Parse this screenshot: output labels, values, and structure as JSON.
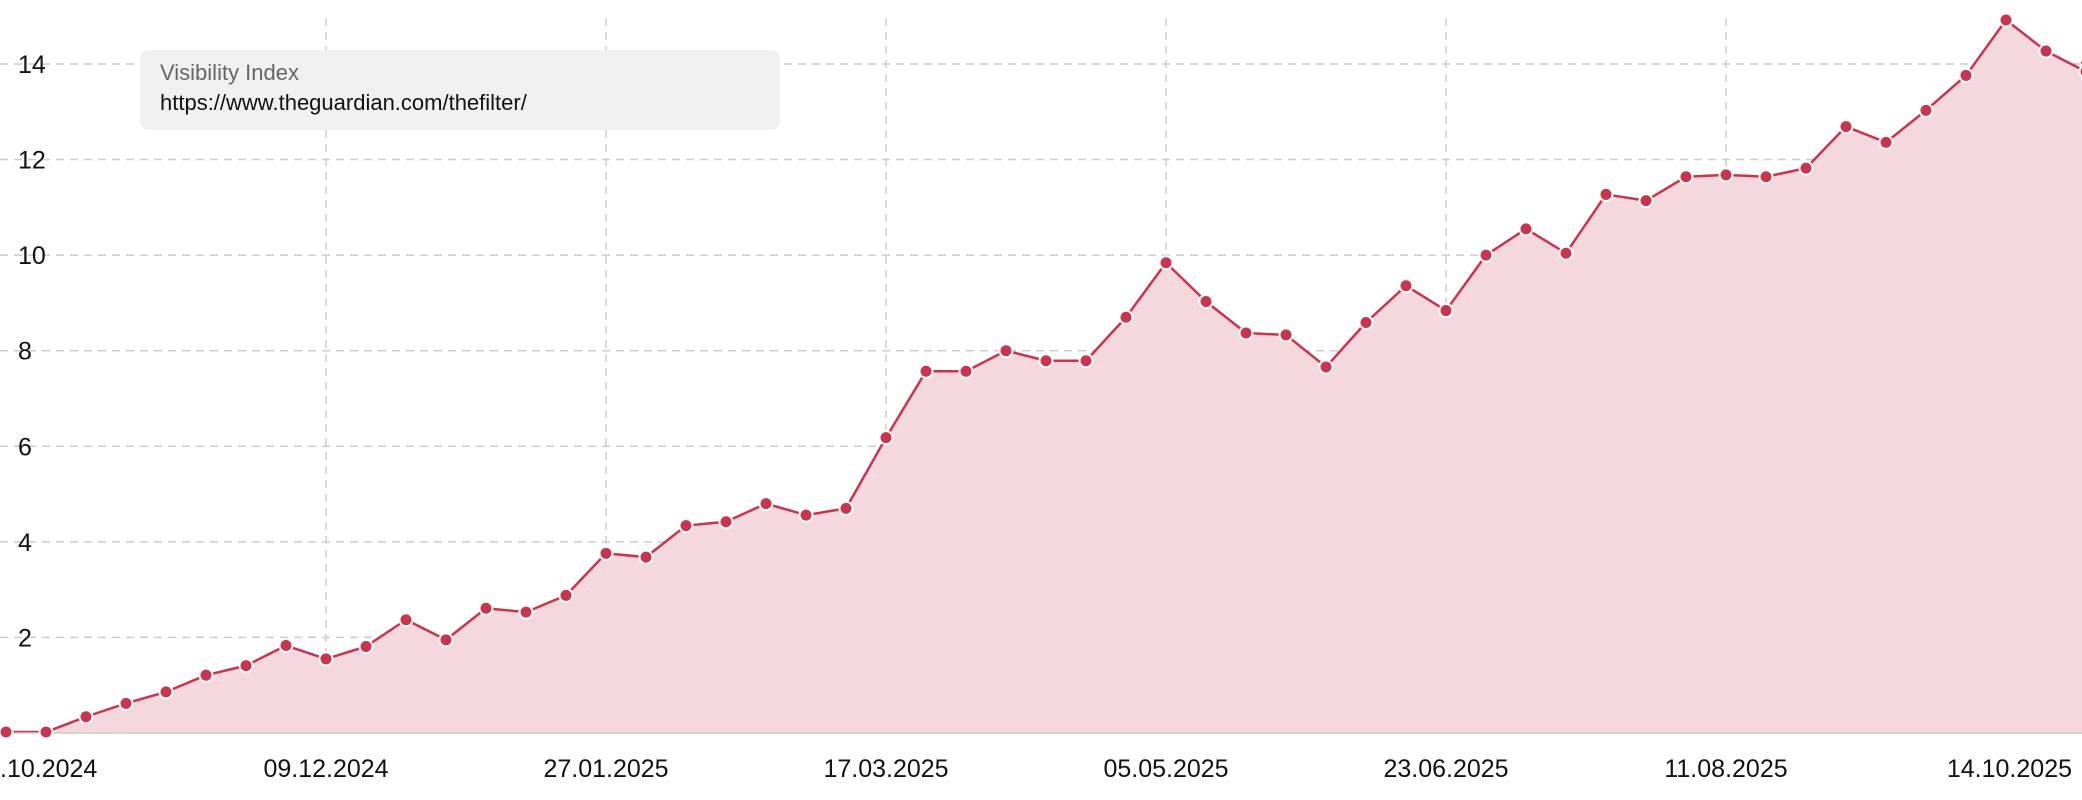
{
  "chart_data": {
    "type": "area",
    "legend": {
      "title": "Visibility Index",
      "series_label": "https://www.theguardian.com/thefilter/"
    },
    "x": [
      "2024-10-14",
      "2024-10-21",
      "2024-10-28",
      "2024-11-04",
      "2024-11-11",
      "2024-11-18",
      "2024-11-25",
      "2024-12-02",
      "2024-12-09",
      "2024-12-16",
      "2024-12-23",
      "2024-12-30",
      "2025-01-06",
      "2025-01-13",
      "2025-01-20",
      "2025-01-27",
      "2025-02-03",
      "2025-02-10",
      "2025-02-17",
      "2025-02-24",
      "2025-03-03",
      "2025-03-10",
      "2025-03-17",
      "2025-03-24",
      "2025-03-31",
      "2025-04-07",
      "2025-04-14",
      "2025-04-21",
      "2025-04-28",
      "2025-05-05",
      "2025-05-12",
      "2025-05-19",
      "2025-05-26",
      "2025-06-02",
      "2025-06-09",
      "2025-06-16",
      "2025-06-23",
      "2025-06-30",
      "2025-07-07",
      "2025-07-14",
      "2025-07-21",
      "2025-07-28",
      "2025-08-04",
      "2025-08-11",
      "2025-08-18",
      "2025-08-25",
      "2025-09-01",
      "2025-09-08",
      "2025-09-15",
      "2025-09-22",
      "2025-09-29",
      "2025-10-06",
      "2025-10-13"
    ],
    "series": [
      {
        "values": [
          0.02,
          0.02,
          0.34,
          0.62,
          0.86,
          1.21,
          1.41,
          1.83,
          1.55,
          1.81,
          2.37,
          1.95,
          2.61,
          2.53,
          2.88,
          3.76,
          3.68,
          4.34,
          4.42,
          4.8,
          4.56,
          4.7,
          6.18,
          7.57,
          7.57,
          8.0,
          7.79,
          7.79,
          8.7,
          9.84,
          9.03,
          8.37,
          8.33,
          7.66,
          8.59,
          9.36,
          8.84,
          10.0,
          10.55,
          10.04,
          11.27,
          11.14,
          11.64,
          11.68,
          11.64,
          11.82,
          12.69,
          12.36,
          13.03,
          13.76,
          14.92,
          14.27,
          13.84
        ]
      }
    ],
    "x_ticks": [
      ".10.2024",
      "09.12.2024",
      "27.01.2025",
      "17.03.2025",
      "05.05.2025",
      "23.06.2025",
      "11.08.2025",
      "14.10.2025"
    ],
    "y_ticks": [
      "2",
      "4",
      "6",
      "8",
      "10",
      "12",
      "14"
    ],
    "ylim": [
      0,
      14.92
    ],
    "grid": true,
    "colors": {
      "line": "#c8354f",
      "fill": "#f4d8dd",
      "grid": "#cccccc",
      "marker_stroke": "#ffffff"
    }
  }
}
